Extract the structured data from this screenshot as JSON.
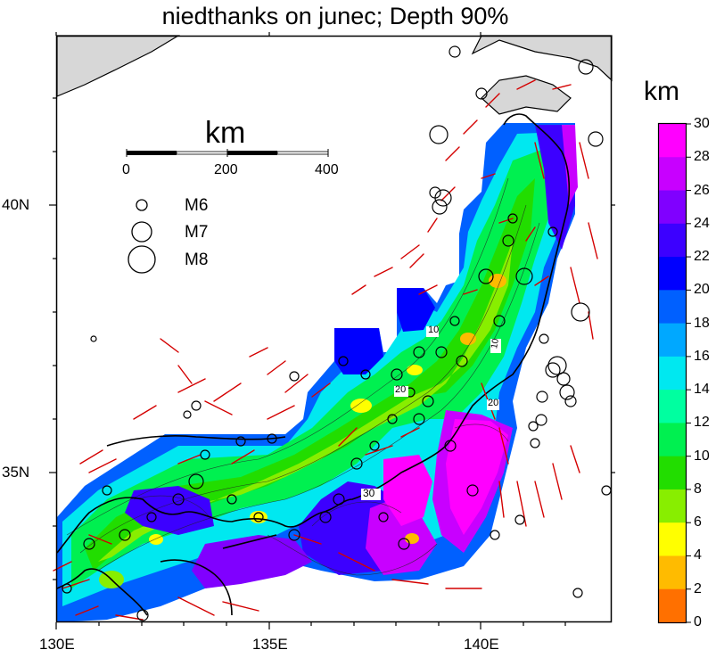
{
  "title": "niedthanks on junec; Depth 90%",
  "colorbar": {
    "unit": "km",
    "ticks": [
      "30",
      "28",
      "26",
      "24",
      "22",
      "20",
      "18",
      "16",
      "14",
      "12",
      "10",
      "8",
      "6",
      "4",
      "2",
      "0"
    ],
    "colors": [
      "#ff00ff",
      "#c800ff",
      "#8000ff",
      "#3c00ff",
      "#0000ff",
      "#0060ff",
      "#00a8ff",
      "#00e8f0",
      "#00ffa0",
      "#00f050",
      "#22dd00",
      "#88ee00",
      "#ffff00",
      "#ffbb00",
      "#ff7000",
      "#ff3000",
      "#ff0000"
    ]
  },
  "axes": {
    "x_ticks": [
      "130E",
      "135E",
      "140E"
    ],
    "y_ticks": [
      "40N",
      "35N"
    ]
  },
  "scale_bar": {
    "unit": "km",
    "labels": [
      "0",
      "200",
      "400"
    ]
  },
  "magnitude_legend": [
    {
      "label": "M6"
    },
    {
      "label": "M7"
    },
    {
      "label": "M8"
    }
  ],
  "contour_labels": [
    "10",
    "20",
    "30",
    "10",
    "20"
  ]
}
